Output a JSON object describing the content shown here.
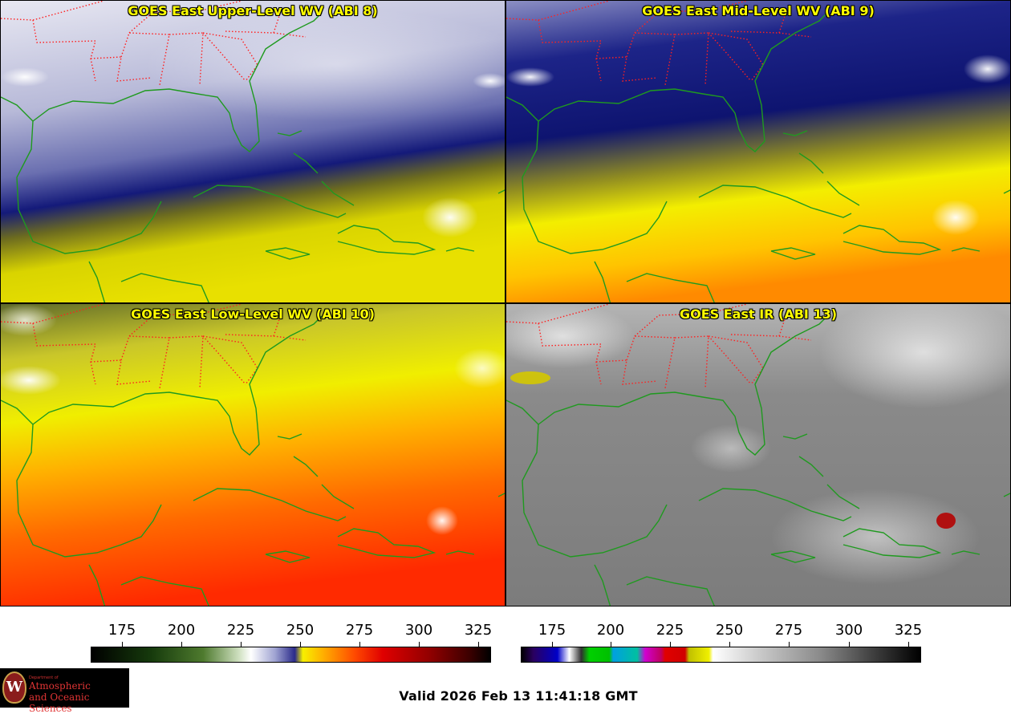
{
  "panels": [
    {
      "title": "GOES East Upper-Level WV (ABI 8)"
    },
    {
      "title": "GOES East Mid-Level WV (ABI 9)"
    },
    {
      "title": "GOES East Low-Level WV (ABI 10)"
    },
    {
      "title": "GOES East IR (ABI 13)"
    }
  ],
  "wv_colorbar": {
    "ticks": [
      "175",
      "200",
      "225",
      "250",
      "275",
      "300",
      "325"
    ]
  },
  "ir_colorbar": {
    "ticks": [
      "175",
      "200",
      "225",
      "250",
      "275",
      "300",
      "325"
    ]
  },
  "logo": {
    "small_text": "Department of",
    "line1": "Atmospheric",
    "line2": "and Oceanic Sciences",
    "seal_letter": "W"
  },
  "valid_time": "Valid 2026 Feb 13 11:41:18 GMT",
  "colors": {
    "state_borders": "#ff2020",
    "coastlines": "#1f9a1f",
    "title_text": "#ffff00"
  }
}
